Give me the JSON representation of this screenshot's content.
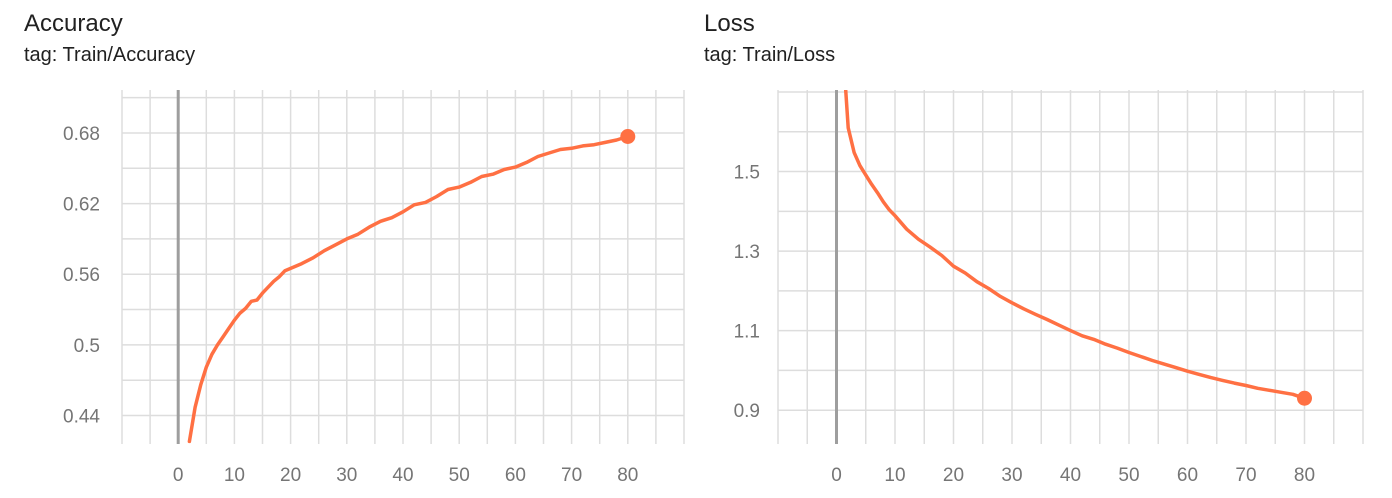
{
  "chart_data": [
    {
      "type": "line",
      "title": "Accuracy",
      "subtitle": "tag: Train/Accuracy",
      "xlabel": "",
      "ylabel": "",
      "xlim": [
        -10,
        90
      ],
      "ylim": [
        0.4158,
        0.7165
      ],
      "xticks": [
        0,
        10,
        20,
        30,
        40,
        50,
        60,
        70,
        80
      ],
      "yticks": [
        0.44,
        0.5,
        0.56,
        0.62,
        0.68
      ],
      "ytick_labels": [
        "0.44",
        "0.5",
        "0.56",
        "0.62",
        "0.68"
      ],
      "grid": true,
      "color": "#ff7043",
      "series": [
        {
          "x": [
            2,
            3,
            4,
            5,
            6,
            7,
            8,
            9,
            10,
            11,
            12,
            13,
            14,
            15,
            16,
            17,
            18,
            19,
            20,
            22,
            24,
            26,
            28,
            30,
            32,
            34,
            36,
            38,
            40,
            42,
            44,
            46,
            48,
            50,
            52,
            54,
            56,
            58,
            60,
            62,
            64,
            66,
            68,
            70,
            72,
            74,
            76,
            78,
            80
          ],
          "y": [
            0.418,
            0.447,
            0.466,
            0.481,
            0.492,
            0.5,
            0.507,
            0.514,
            0.521,
            0.527,
            0.531,
            0.537,
            0.538,
            0.544,
            0.549,
            0.554,
            0.558,
            0.563,
            0.565,
            0.569,
            0.574,
            0.58,
            0.585,
            0.59,
            0.594,
            0.6,
            0.605,
            0.608,
            0.613,
            0.619,
            0.621,
            0.626,
            0.632,
            0.634,
            0.638,
            0.643,
            0.645,
            0.649,
            0.651,
            0.655,
            0.66,
            0.663,
            0.666,
            0.667,
            0.669,
            0.67,
            0.672,
            0.674,
            0.677
          ]
        }
      ]
    },
    {
      "type": "line",
      "title": "Loss",
      "subtitle": "tag: Train/Loss",
      "xlabel": "",
      "ylabel": "",
      "xlim": [
        -10,
        90
      ],
      "ylim": [
        0.815,
        1.705
      ],
      "xticks": [
        0,
        10,
        20,
        30,
        40,
        50,
        60,
        70,
        80
      ],
      "yticks": [
        0.9,
        1.1,
        1.3,
        1.5
      ],
      "ytick_labels": [
        "0.9",
        "1.1",
        "1.3",
        "1.5"
      ],
      "grid": true,
      "color": "#ff7043",
      "series": [
        {
          "x": [
            1.5,
            2,
            3,
            4,
            5,
            6,
            7,
            8,
            9,
            10,
            12,
            14,
            16,
            18,
            20,
            22,
            24,
            26,
            28,
            30,
            32,
            34,
            36,
            38,
            40,
            42,
            44,
            46,
            48,
            50,
            52,
            54,
            56,
            58,
            60,
            62,
            64,
            66,
            68,
            70,
            72,
            74,
            76,
            78,
            80
          ],
          "y": [
            1.72,
            1.61,
            1.548,
            1.515,
            1.491,
            1.468,
            1.447,
            1.424,
            1.404,
            1.389,
            1.355,
            1.33,
            1.31,
            1.289,
            1.262,
            1.245,
            1.223,
            1.206,
            1.186,
            1.17,
            1.155,
            1.141,
            1.128,
            1.114,
            1.1,
            1.087,
            1.078,
            1.066,
            1.056,
            1.045,
            1.035,
            1.025,
            1.016,
            1.007,
            0.998,
            0.99,
            0.982,
            0.975,
            0.968,
            0.962,
            0.955,
            0.95,
            0.945,
            0.94,
            0.93
          ]
        }
      ]
    }
  ]
}
